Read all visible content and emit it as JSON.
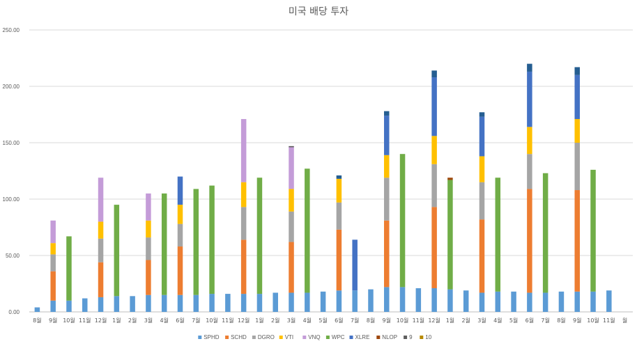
{
  "chart_data": {
    "type": "bar",
    "stacked": true,
    "title": "미국 배당 투자",
    "xlabel": "",
    "ylabel": "",
    "ylim": [
      0,
      250
    ],
    "yticks": [
      0,
      50,
      100,
      150,
      200,
      250
    ],
    "ytick_labels": [
      "0.00",
      "50.00",
      "100.00",
      "150.00",
      "200.00",
      "250.00"
    ],
    "grid": true,
    "legend_position": "bottom",
    "categories": [
      "8월",
      "9월",
      "10월",
      "11월",
      "12월",
      "1월",
      "2월",
      "3월",
      "4월",
      "6월",
      "7월",
      "10월",
      "11월",
      "12월",
      "1월",
      "2월",
      "3월",
      "4월",
      "5월",
      "6월",
      "7월",
      "8월",
      "9월",
      "10월",
      "11월",
      "12월",
      "1월",
      "2월",
      "3월",
      "4월",
      "5월",
      "6월",
      "7월",
      "8월",
      "9월",
      "10월",
      "11월",
      "월"
    ],
    "series": [
      {
        "name": "SPHD",
        "color": "#5B9BD5",
        "values": [
          4,
          10,
          10,
          12,
          13,
          14,
          14,
          15,
          15,
          15,
          15,
          16,
          16,
          16,
          16,
          17,
          17,
          17,
          18,
          19,
          19,
          20,
          22,
          22,
          21,
          21,
          20,
          19,
          17,
          18,
          18,
          17,
          17,
          18,
          18,
          18,
          19,
          0
        ]
      },
      {
        "name": "SCHD",
        "color": "#ED7D31",
        "values": [
          0,
          26,
          0,
          0,
          31,
          0,
          0,
          31,
          0,
          43,
          0,
          0,
          0,
          48,
          0,
          0,
          45,
          0,
          0,
          54,
          0,
          0,
          59,
          0,
          0,
          72,
          0,
          0,
          65,
          0,
          0,
          92,
          0,
          0,
          90,
          0,
          0,
          0
        ]
      },
      {
        "name": "DGRO",
        "color": "#A5A5A5",
        "values": [
          0,
          15,
          0,
          0,
          21,
          0,
          0,
          20,
          0,
          20,
          0,
          0,
          0,
          29,
          0,
          0,
          27,
          0,
          0,
          24,
          0,
          0,
          38,
          0,
          0,
          38,
          0,
          0,
          33,
          0,
          0,
          31,
          0,
          0,
          42,
          0,
          0,
          0
        ]
      },
      {
        "name": "VTI",
        "color": "#FFC000",
        "values": [
          0,
          10,
          0,
          0,
          15,
          0,
          0,
          15,
          0,
          17,
          0,
          0,
          0,
          22,
          0,
          0,
          20,
          0,
          0,
          21,
          0,
          0,
          20,
          0,
          0,
          25,
          0,
          0,
          23,
          0,
          0,
          24,
          0,
          0,
          21,
          0,
          0,
          0
        ]
      },
      {
        "name": "VNQ",
        "color": "#C49CD8",
        "values": [
          0,
          20,
          0,
          0,
          39,
          0,
          0,
          24,
          0,
          0,
          0,
          0,
          0,
          56,
          0,
          0,
          37,
          0,
          0,
          0,
          0,
          0,
          0,
          0,
          0,
          0,
          0,
          0,
          0,
          0,
          0,
          0,
          0,
          0,
          0,
          0,
          0,
          0
        ]
      },
      {
        "name": "WPC",
        "color": "#70AD47",
        "values": [
          0,
          0,
          57,
          0,
          0,
          81,
          0,
          0,
          90,
          0,
          94,
          96,
          0,
          0,
          103,
          0,
          0,
          110,
          0,
          0,
          0,
          0,
          0,
          118,
          0,
          0,
          97,
          0,
          0,
          101,
          0,
          0,
          106,
          0,
          0,
          108,
          0,
          0
        ]
      },
      {
        "name": "XLRE",
        "color": "#4472C4",
        "values": [
          0,
          0,
          0,
          0,
          0,
          0,
          0,
          0,
          0,
          25,
          0,
          0,
          0,
          0,
          0,
          0,
          0,
          0,
          0,
          0,
          45,
          0,
          35,
          0,
          0,
          52,
          0,
          0,
          35,
          0,
          0,
          49,
          0,
          0,
          39,
          0,
          0,
          0
        ]
      },
      {
        "name": "NLOP",
        "color": "#9E480E",
        "values": [
          0,
          0,
          0,
          0,
          0,
          0,
          0,
          0,
          0,
          0,
          0,
          0,
          0,
          0,
          0,
          0,
          0,
          0,
          0,
          0,
          0,
          0,
          0,
          0,
          0,
          0,
          2,
          0,
          0,
          0,
          0,
          0,
          0,
          0,
          0,
          0,
          0,
          0
        ]
      },
      {
        "name": "9",
        "color": "#5E5E5E",
        "values": [
          0,
          0,
          0,
          0,
          0,
          0,
          0,
          0,
          0,
          0,
          0,
          0,
          0,
          0,
          0,
          0,
          1,
          0,
          0,
          0,
          0,
          0,
          0,
          0,
          0,
          0,
          0,
          0,
          0,
          0,
          0,
          0,
          0,
          0,
          0,
          0,
          0,
          0
        ]
      },
      {
        "name": "10",
        "color": "#B78900",
        "values": [
          0,
          0,
          0,
          0,
          0,
          0,
          0,
          0,
          0,
          0,
          0,
          0,
          0,
          0,
          0,
          0,
          0,
          0,
          0,
          0,
          0,
          0,
          0,
          0,
          0,
          0,
          0,
          0,
          0,
          0,
          0,
          0,
          0,
          0,
          0,
          0,
          0,
          0
        ]
      }
    ],
    "caps": {
      "color": "#255E91",
      "values": [
        0,
        0,
        0,
        0,
        0,
        0,
        0,
        0,
        0,
        0,
        0,
        0,
        0,
        0,
        0,
        0,
        0,
        0,
        0,
        3,
        0,
        0,
        4,
        0,
        0,
        6,
        0,
        0,
        4,
        0,
        0,
        7,
        0,
        0,
        7,
        0,
        0,
        0
      ]
    }
  }
}
